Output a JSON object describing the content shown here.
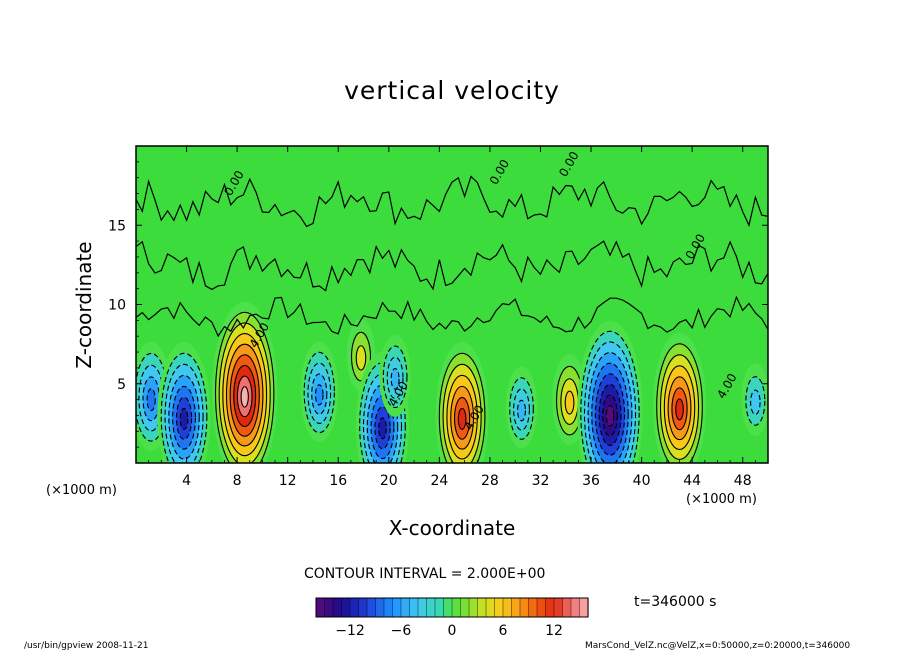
{
  "chart_data": {
    "type": "contour",
    "title": "vertical velocity",
    "xlabel": "X-coordinate",
    "ylabel": "Z-coordinate",
    "x_unit_label": "(×1000 m)",
    "xlim": [
      0,
      50
    ],
    "ylim": [
      0,
      20
    ],
    "x_ticks": [
      "4",
      "8",
      "12",
      "16",
      "20",
      "24",
      "28",
      "32",
      "36",
      "40",
      "44",
      "48"
    ],
    "y_ticks": [
      "5",
      "10",
      "15"
    ],
    "contour_interval": "CONTOUR INTERVAL = 2.000E+00",
    "contour_labels": [
      "0.00",
      "4.00",
      "-4.00"
    ],
    "colorbar_ticks": [
      "−12",
      "−6",
      "0",
      "6",
      "12"
    ],
    "colorbar_range": [
      -16,
      16
    ],
    "time_label": "t=346000  s",
    "cells": [
      {
        "x": 1.2,
        "z": 4.2,
        "w": -8
      },
      {
        "x": 3.8,
        "z": 3.0,
        "w": -12
      },
      {
        "x": 8.6,
        "z": 4.4,
        "w": 16
      },
      {
        "x": 14.5,
        "z": 4.5,
        "w": -7
      },
      {
        "x": 17.8,
        "z": 6.8,
        "w": 4
      },
      {
        "x": 19.5,
        "z": 2.4,
        "w": -12
      },
      {
        "x": 20.5,
        "z": 5.5,
        "w": -5
      },
      {
        "x": 25.8,
        "z": 3.0,
        "w": 12
      },
      {
        "x": 30.5,
        "z": 3.5,
        "w": -5
      },
      {
        "x": 34.3,
        "z": 4.0,
        "w": 6
      },
      {
        "x": 37.5,
        "z": 3.2,
        "w": -16
      },
      {
        "x": 43.0,
        "z": 3.6,
        "w": 12
      },
      {
        "x": 49.0,
        "z": 4.0,
        "w": -4
      }
    ]
  },
  "footer": {
    "left": "/usr/bin/gpview   2008-11-21",
    "right": "MarsCond_VelZ.nc@VelZ,x=0:50000,z=0:20000,t=346000"
  }
}
